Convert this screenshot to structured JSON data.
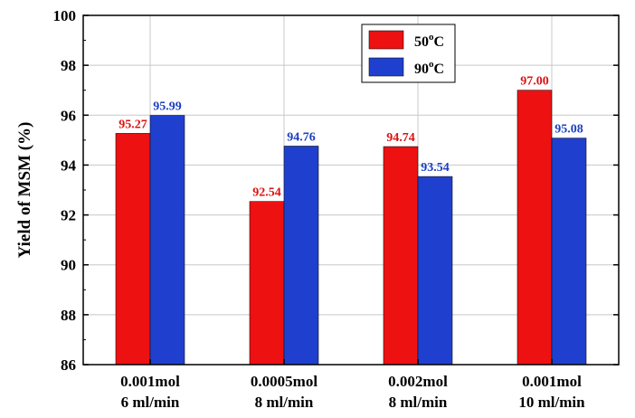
{
  "chart_data": {
    "type": "bar",
    "title": "",
    "xlabel": "",
    "ylabel": "Yield of MSM (%)",
    "ylim": [
      86,
      100
    ],
    "yticks": [
      86,
      88,
      90,
      92,
      94,
      96,
      98,
      100
    ],
    "grid": true,
    "legend_position": "top-right",
    "categories": [
      {
        "line1": "0.001mol",
        "line2": "6 ml/min"
      },
      {
        "line1": "0.0005mol",
        "line2": "8 ml/min"
      },
      {
        "line1": "0.002mol",
        "line2": "8 ml/min"
      },
      {
        "line1": "0.001mol",
        "line2": "10 ml/min"
      }
    ],
    "series": [
      {
        "name": "50",
        "unit_sup": "o",
        "unit": "C",
        "color": "#ee1111",
        "label_color": "#dd1111",
        "values": [
          95.27,
          92.54,
          94.74,
          97.0
        ],
        "labels": [
          "95.27",
          "92.54",
          "94.74",
          "97.00"
        ]
      },
      {
        "name": "90",
        "unit_sup": "o",
        "unit": "C",
        "color": "#1f3fcf",
        "label_color": "#1a3fc0",
        "values": [
          95.99,
          94.76,
          93.54,
          95.08
        ],
        "labels": [
          "95.99",
          "94.76",
          "93.54",
          "95.08"
        ]
      }
    ]
  }
}
